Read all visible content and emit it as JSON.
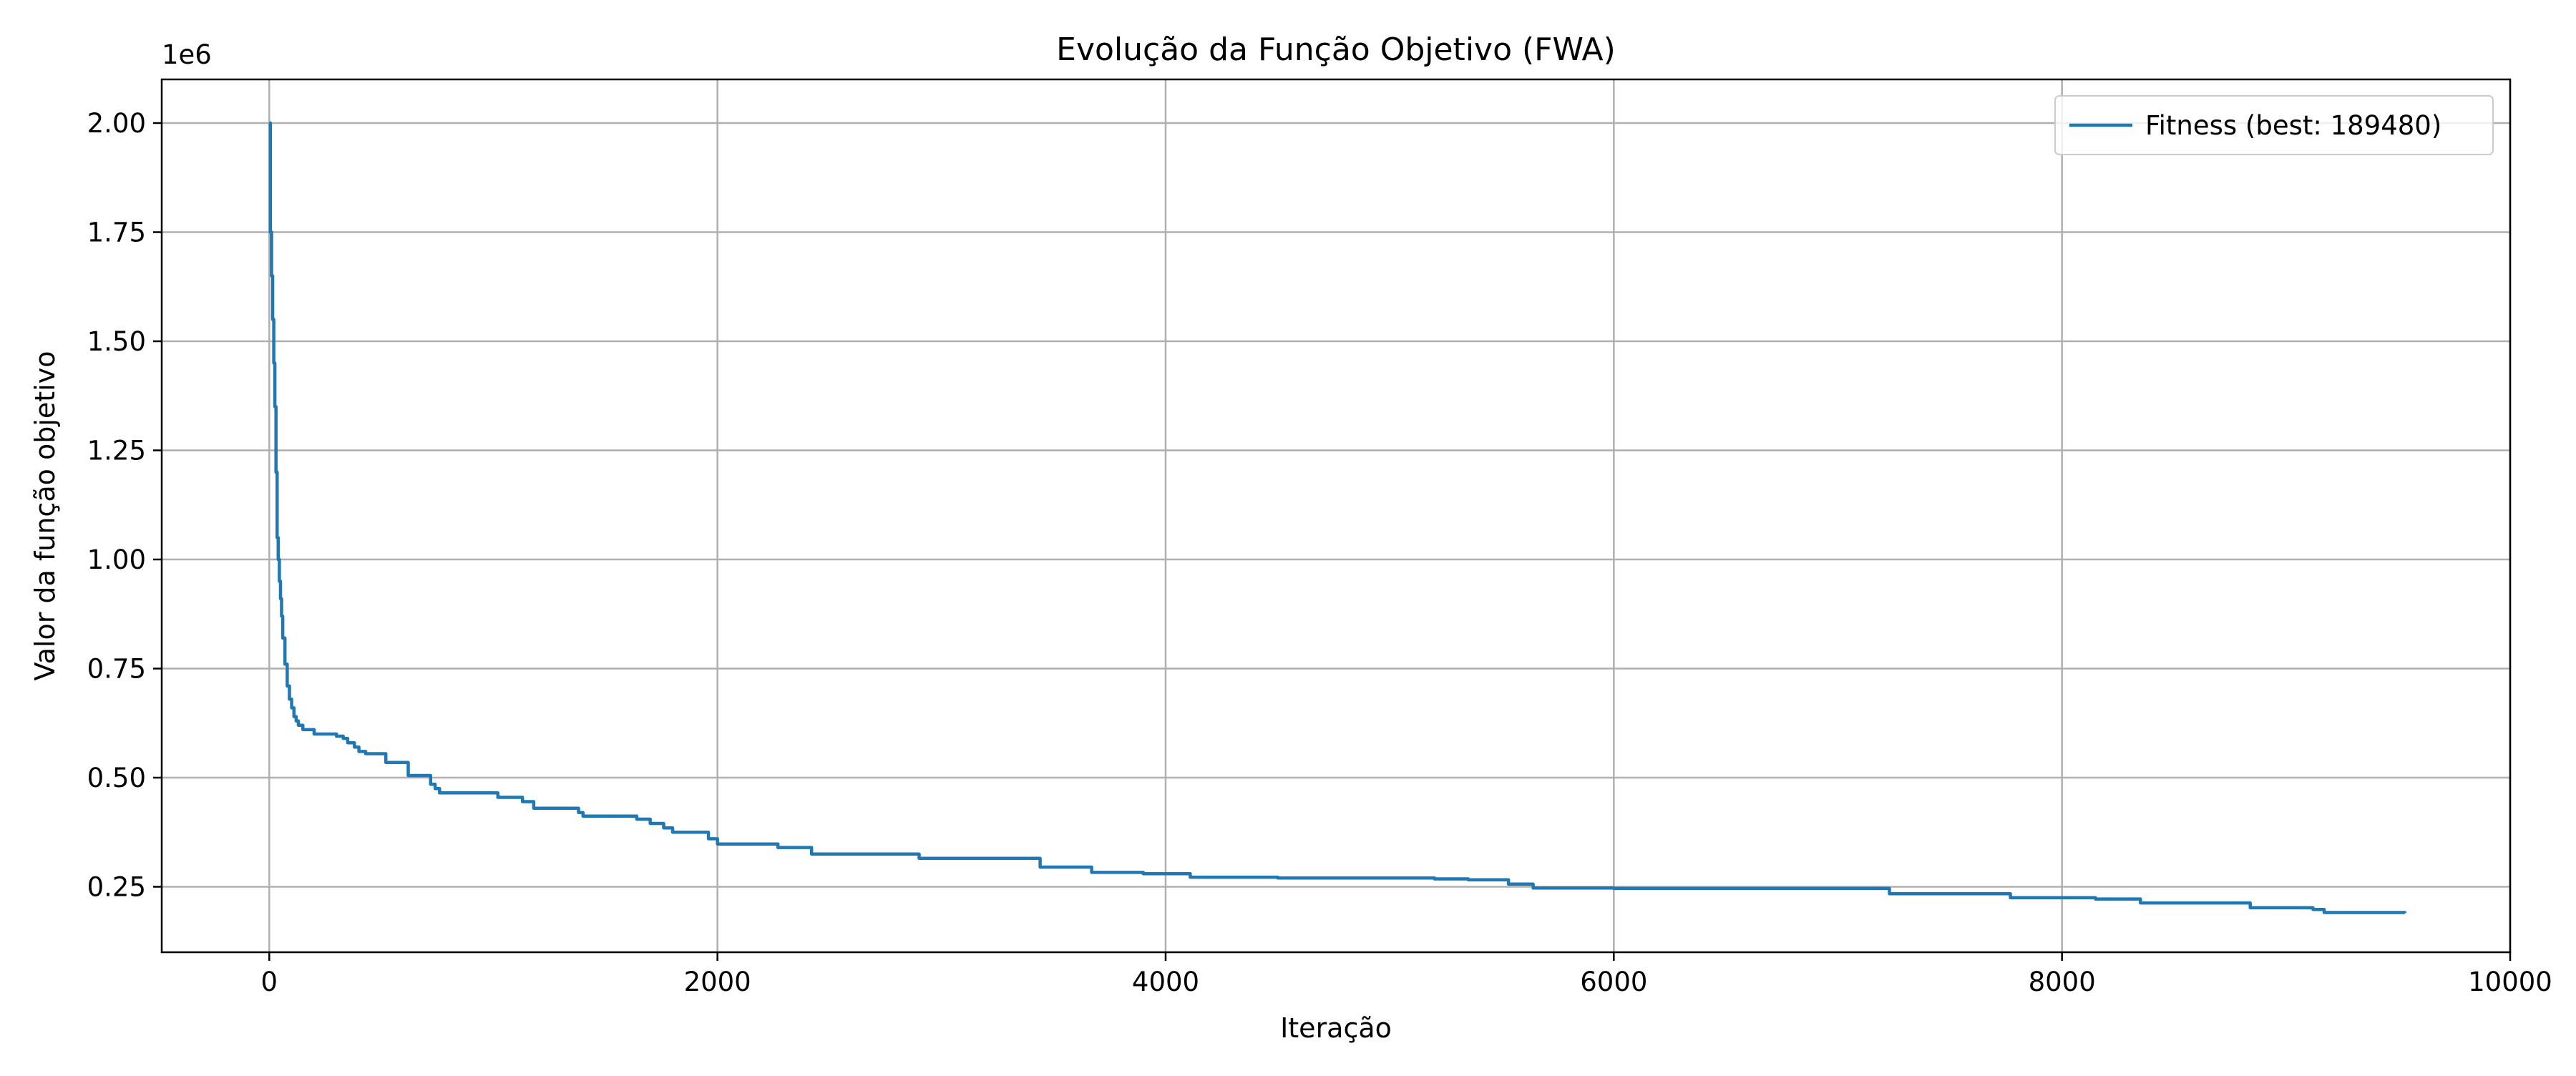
{
  "chart_data": {
    "type": "line",
    "title": "Evolução da Função Objetivo (FWA)",
    "xlabel": "Iteração",
    "ylabel": "Valor da função objetivo",
    "y_offset_label": "1e6",
    "xlim": [
      -480,
      10000
    ],
    "ylim": [
      100000,
      2100000
    ],
    "x_ticks": [
      0,
      2000,
      4000,
      6000,
      8000,
      10000
    ],
    "y_ticks": [
      250000,
      500000,
      750000,
      1000000,
      1250000,
      1500000,
      1750000,
      2000000
    ],
    "y_tick_labels": [
      "0.25",
      "0.50",
      "0.75",
      "1.00",
      "1.25",
      "1.50",
      "1.75",
      "2.00"
    ],
    "grid": true,
    "legend_position": "top-right",
    "series": [
      {
        "name": "Fitness (best: 189480)",
        "color": "#1f77b4",
        "step": true,
        "x": [
          0,
          5,
          10,
          15,
          20,
          25,
          30,
          35,
          40,
          45,
          50,
          55,
          60,
          70,
          80,
          90,
          100,
          110,
          120,
          130,
          150,
          200,
          300,
          330,
          350,
          380,
          400,
          430,
          520,
          620,
          720,
          740,
          760,
          1020,
          1130,
          1180,
          1380,
          1400,
          1640,
          1700,
          1760,
          1800,
          1960,
          2000,
          2270,
          2420,
          2900,
          3440,
          3670,
          3900,
          4110,
          4500,
          5200,
          5350,
          5530,
          5640,
          6000,
          7230,
          7770,
          8150,
          8350,
          8840,
          9120,
          9170,
          9530
        ],
        "y": [
          2000000,
          1750000,
          1650000,
          1550000,
          1450000,
          1350000,
          1200000,
          1050000,
          1000000,
          950000,
          910000,
          870000,
          820000,
          760000,
          710000,
          680000,
          660000,
          640000,
          630000,
          620000,
          610000,
          600000,
          595000,
          590000,
          580000,
          570000,
          560000,
          555000,
          535000,
          505000,
          485000,
          475000,
          465000,
          455000,
          445000,
          430000,
          420000,
          412000,
          405000,
          395000,
          385000,
          375000,
          360000,
          348000,
          340000,
          325000,
          315000,
          295000,
          283000,
          280000,
          272000,
          270000,
          268000,
          266000,
          256000,
          247000,
          246000,
          234000,
          225000,
          222000,
          213000,
          202000,
          198000,
          191000,
          189480
        ]
      }
    ]
  }
}
